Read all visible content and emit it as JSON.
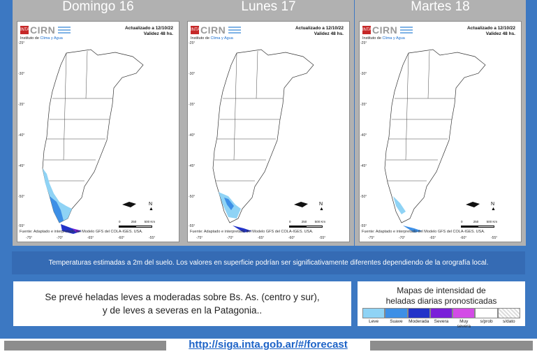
{
  "panels": [
    {
      "day": "Domingo 16",
      "logo": "CIRN",
      "institute_prefix": "Instituto de ",
      "institute_highlight": "Clima y Agua",
      "updated": "Actualizado a 12/10/22",
      "validity": "Validez 48 hs.",
      "source": "Fuente: Adaptado e interpretado del Modelo GFS del COLA-IGES. USA.",
      "scale": [
        "0",
        "250",
        "500 Km"
      ],
      "north": "N"
    },
    {
      "day": "Lunes 17",
      "logo": "CIRN",
      "institute_prefix": "Instituto de ",
      "institute_highlight": "Clima y Agua",
      "updated": "Actualizado a 12/10/22",
      "validity": "Validez 48 hs.",
      "source": "Fuente: Adaptado e interpretado del Modelo GFS del COLA-IGES. USA.",
      "scale": [
        "0",
        "250",
        "500 Km"
      ],
      "north": "N"
    },
    {
      "day": "Martes 18",
      "logo": "CIRN",
      "institute_prefix": "Instituto de ",
      "institute_highlight": "Clima y Agua",
      "updated": "Actualizado a 12/10/22",
      "validity": "Validez 48 hs.",
      "source": "Fuente: Adaptado e interpretado del Modelo GFS del COLA-IGES. USA.",
      "scale": [
        "0",
        "250",
        "500 Km"
      ],
      "north": "N"
    }
  ],
  "lat_ticks": [
    "-25°",
    "-30°",
    "-35°",
    "-40°",
    "-45°",
    "-50°",
    "-55°"
  ],
  "lon_ticks": [
    "-75°",
    "-70°",
    "-65°",
    "-60°",
    "-55°"
  ],
  "banner": "Temperaturas estimadas a 2m del suelo. Los valores en superficie podrían ser significativamente diferentes dependiendo de la orografía local.",
  "forecast": {
    "line1": "Se prevé heladas leves a moderadas sobre Bs. As. (centro y sur),",
    "line2": "y de leves a severas en la Patagonia.."
  },
  "legend": {
    "title_line1": "Mapas de intensidad de",
    "title_line2": "heladas diarias pronosticadas",
    "items": [
      {
        "label": "Leve",
        "color": "#8fd3f5"
      },
      {
        "label": "Suave",
        "color": "#3d8fe6"
      },
      {
        "label": "Moderada",
        "color": "#2233c9"
      },
      {
        "label": "Severa",
        "color": "#7a1fd9"
      },
      {
        "label": "Muy severa",
        "color": "#d34be6"
      },
      {
        "label": "s/prob",
        "color": "#ffffff"
      },
      {
        "label": "s/dato",
        "color": "#e6e6e6"
      }
    ]
  },
  "footer": {
    "url": "http://siga.inta.gob.ar/#/forecast"
  },
  "colors": {
    "background": "#3c78c2",
    "panel": "#b1b1b1",
    "banner": "#356bb4",
    "link": "#1d63c7"
  }
}
